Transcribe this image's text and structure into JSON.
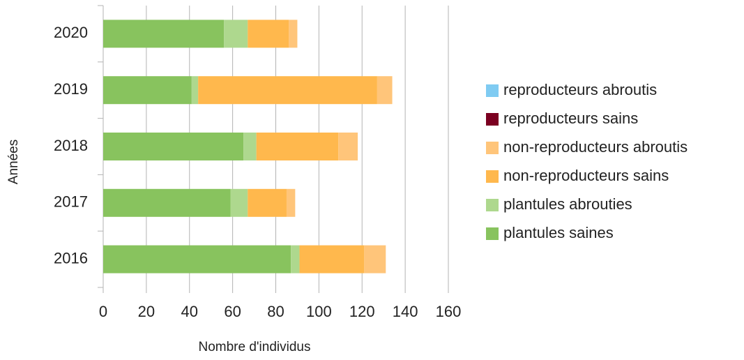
{
  "chart_data": {
    "type": "stacked-bar-horizontal",
    "x_label": "Nombre d'individus",
    "y_label": "Années",
    "categories": [
      "2016",
      "2017",
      "2018",
      "2019",
      "2020"
    ],
    "series": [
      {
        "name": "plantules saines",
        "color": "#88c35e",
        "values": [
          87,
          59,
          65,
          41,
          56
        ]
      },
      {
        "name": "plantules abrouties",
        "color": "#aed88e",
        "values": [
          4,
          8,
          6,
          3,
          11
        ]
      },
      {
        "name": "non-reproducteurs sains",
        "color": "#ffb84d",
        "values": [
          30,
          18,
          38,
          83,
          19
        ]
      },
      {
        "name": "non-reproducteurs abroutis",
        "color": "#ffc57a",
        "values": [
          10,
          4,
          9,
          7,
          4
        ]
      },
      {
        "name": "reproducteurs sains",
        "color": "#7b0021",
        "values": [
          0,
          0,
          0,
          0,
          0
        ]
      },
      {
        "name": "reproducteurs abroutis",
        "color": "#7fcbf2",
        "values": [
          0,
          0,
          0,
          0,
          0
        ]
      }
    ],
    "xlim": [
      0,
      160
    ],
    "xticks": [
      0,
      20,
      40,
      60,
      80,
      100,
      120,
      140,
      160
    ],
    "grid": true,
    "legend": "right"
  }
}
